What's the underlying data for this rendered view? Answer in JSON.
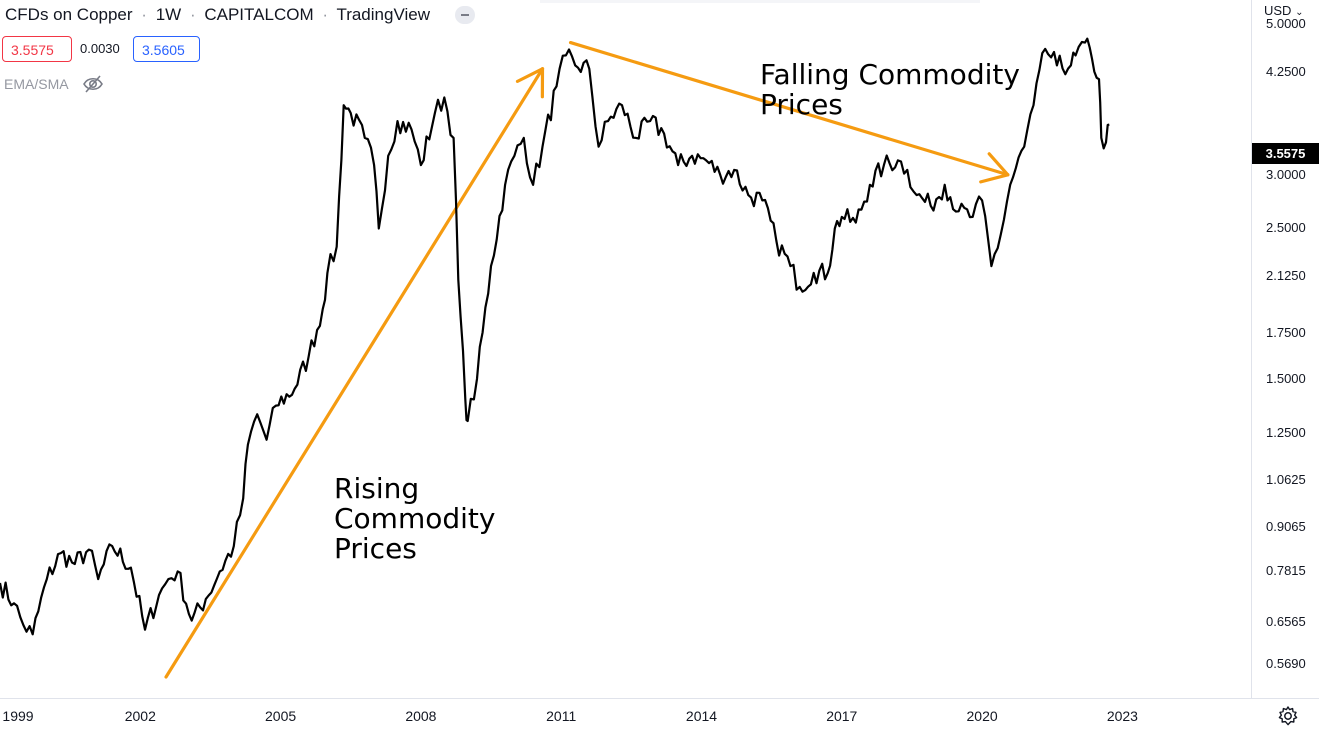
{
  "header": {
    "symbol": "CFDs on Copper",
    "interval": "1W",
    "exchange": "CAPITALCOM",
    "source": "TradingView",
    "separator": "·",
    "bid": "3.5575",
    "spread": "0.0030",
    "ask": "3.5605",
    "indicator_label": "EMA/SMA"
  },
  "axis": {
    "currency": "USD",
    "last_price": "3.5575"
  },
  "colors": {
    "line": "#000000",
    "arrow": "#f59b11",
    "bid": "#f23645",
    "ask": "#2962ff"
  },
  "annotations": [
    {
      "lines": [
        "Rising",
        "Commodity",
        "Prices"
      ]
    },
    {
      "lines": [
        "Falling Commodity",
        "Prices"
      ]
    }
  ],
  "chart_data": {
    "type": "line",
    "title": "CFDs on Copper · 1W · CAPITALCOM",
    "y_scale": "log",
    "ylim": [
      0.525,
      5.25
    ],
    "y_ticks": [
      "5.0000",
      "4.2500",
      "3.0000",
      "2.5000",
      "2.1250",
      "1.7500",
      "1.5000",
      "1.2500",
      "1.0625",
      "0.9065",
      "0.7815",
      "0.6565",
      "0.5690"
    ],
    "x_ticks": [
      "1999",
      "2002",
      "2005",
      "2008",
      "2011",
      "2014",
      "2017",
      "2020",
      "2023"
    ],
    "xlim": [
      1999.0,
      2025.75
    ],
    "series": [
      {
        "name": "Copper",
        "points": [
          [
            1999.0,
            0.75
          ],
          [
            1999.3,
            0.7
          ],
          [
            1999.5,
            0.65
          ],
          [
            1999.7,
            0.63
          ],
          [
            2000.0,
            0.76
          ],
          [
            2000.3,
            0.83
          ],
          [
            2000.6,
            0.8
          ],
          [
            2000.9,
            0.84
          ],
          [
            2001.1,
            0.76
          ],
          [
            2001.4,
            0.85
          ],
          [
            2001.8,
            0.79
          ],
          [
            2002.1,
            0.64
          ],
          [
            2002.4,
            0.72
          ],
          [
            2002.6,
            0.76
          ],
          [
            2002.8,
            0.78
          ],
          [
            2003.1,
            0.66
          ],
          [
            2003.4,
            0.71
          ],
          [
            2003.7,
            0.78
          ],
          [
            2004.0,
            0.85
          ],
          [
            2004.2,
            1.0
          ],
          [
            2004.3,
            1.2
          ],
          [
            2004.5,
            1.33
          ],
          [
            2004.7,
            1.22
          ],
          [
            2004.9,
            1.37
          ],
          [
            2005.3,
            1.45
          ],
          [
            2005.6,
            1.62
          ],
          [
            2005.9,
            1.9
          ],
          [
            2006.0,
            2.15
          ],
          [
            2006.2,
            2.35
          ],
          [
            2006.35,
            3.8
          ],
          [
            2006.5,
            3.7
          ],
          [
            2006.8,
            3.4
          ],
          [
            2007.0,
            3.1
          ],
          [
            2007.1,
            2.5
          ],
          [
            2007.3,
            3.2
          ],
          [
            2007.5,
            3.6
          ],
          [
            2007.8,
            3.5
          ],
          [
            2008.0,
            3.1
          ],
          [
            2008.3,
            3.7
          ],
          [
            2008.5,
            3.9
          ],
          [
            2008.7,
            3.4
          ],
          [
            2008.8,
            2.1
          ],
          [
            2008.95,
            1.4
          ],
          [
            2009.0,
            1.3
          ],
          [
            2009.2,
            1.5
          ],
          [
            2009.5,
            2.2
          ],
          [
            2009.8,
            2.9
          ],
          [
            2010.0,
            3.2
          ],
          [
            2010.2,
            3.4
          ],
          [
            2010.4,
            2.9
          ],
          [
            2010.6,
            3.3
          ],
          [
            2010.9,
            4.05
          ],
          [
            2011.1,
            4.5
          ],
          [
            2011.3,
            4.35
          ],
          [
            2011.6,
            4.3
          ],
          [
            2011.8,
            3.3
          ],
          [
            2012.0,
            3.6
          ],
          [
            2012.3,
            3.8
          ],
          [
            2012.6,
            3.4
          ],
          [
            2012.9,
            3.6
          ],
          [
            2013.2,
            3.45
          ],
          [
            2013.5,
            3.1
          ],
          [
            2013.8,
            3.2
          ],
          [
            2014.1,
            3.15
          ],
          [
            2014.4,
            3.0
          ],
          [
            2014.7,
            3.05
          ],
          [
            2015.0,
            2.8
          ],
          [
            2015.3,
            2.75
          ],
          [
            2015.6,
            2.4
          ],
          [
            2015.9,
            2.2
          ],
          [
            2016.1,
            2.05
          ],
          [
            2016.4,
            2.15
          ],
          [
            2016.7,
            2.15
          ],
          [
            2016.85,
            2.5
          ],
          [
            2017.0,
            2.6
          ],
          [
            2017.3,
            2.55
          ],
          [
            2017.6,
            2.9
          ],
          [
            2017.9,
            3.1
          ],
          [
            2018.2,
            3.15
          ],
          [
            2018.4,
            3.05
          ],
          [
            2018.6,
            2.8
          ],
          [
            2018.9,
            2.7
          ],
          [
            2019.2,
            2.9
          ],
          [
            2019.5,
            2.65
          ],
          [
            2019.8,
            2.6
          ],
          [
            2020.0,
            2.75
          ],
          [
            2020.2,
            2.2
          ],
          [
            2020.4,
            2.45
          ],
          [
            2020.6,
            2.9
          ],
          [
            2020.9,
            3.3
          ],
          [
            2021.1,
            3.8
          ],
          [
            2021.35,
            4.6
          ],
          [
            2021.6,
            4.35
          ],
          [
            2021.9,
            4.35
          ],
          [
            2022.0,
            4.5
          ],
          [
            2022.2,
            4.7
          ],
          [
            2022.35,
            4.45
          ],
          [
            2022.5,
            4.15
          ],
          [
            2022.55,
            3.4
          ],
          [
            2022.65,
            3.35
          ],
          [
            2022.72,
            3.5575
          ]
        ]
      }
    ],
    "arrows": [
      {
        "from": [
          2002.55,
          0.545
        ],
        "to": [
          2010.6,
          4.3
        ]
      },
      {
        "from": [
          2011.2,
          4.7
        ],
        "to": [
          2020.55,
          3.0
        ]
      }
    ]
  }
}
